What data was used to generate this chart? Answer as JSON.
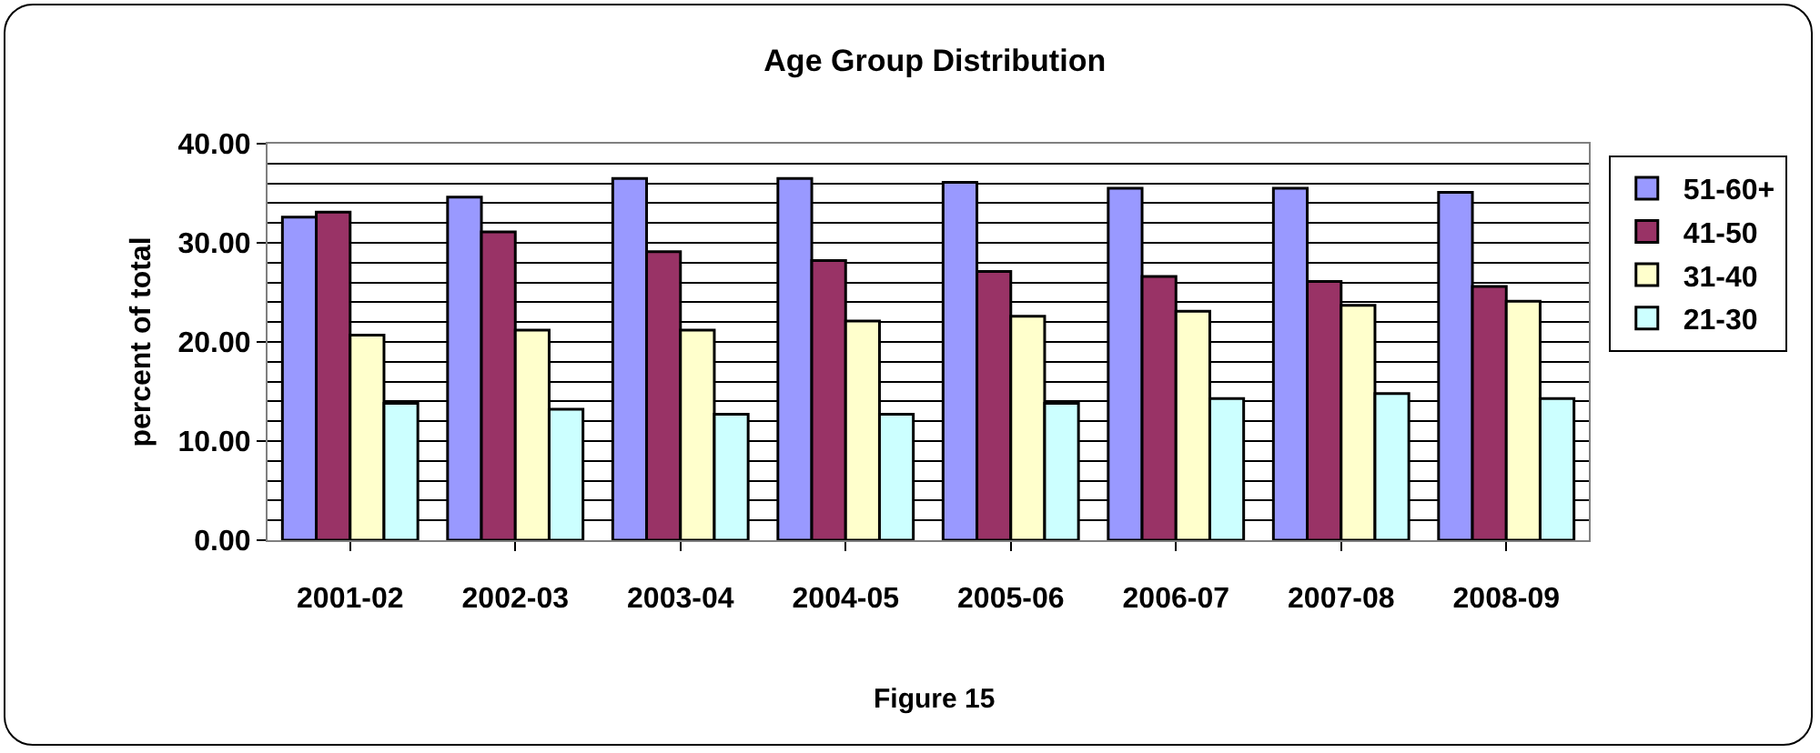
{
  "chart_data": {
    "type": "bar",
    "title": "Age Group Distribution",
    "ylabel": "percent of total",
    "annotations": [
      "Figure 15"
    ],
    "categories": [
      "2001-02",
      "2002-03",
      "2003-04",
      "2004-05",
      "2005-06",
      "2006-07",
      "2007-08",
      "2008-09"
    ],
    "series": [
      {
        "name": "51-60+",
        "color": "#9999ff",
        "values": [
          32.6,
          34.6,
          36.5,
          36.5,
          36.1,
          35.5,
          35.5,
          35.1
        ]
      },
      {
        "name": "41-50",
        "color": "#993366",
        "values": [
          33.1,
          31.1,
          29.1,
          28.2,
          27.1,
          26.6,
          26.1,
          25.6
        ]
      },
      {
        "name": "31-40",
        "color": "#ffffcc",
        "values": [
          20.7,
          21.2,
          21.2,
          22.1,
          22.6,
          23.1,
          23.7,
          24.1
        ]
      },
      {
        "name": "21-30",
        "color": "#ccffff",
        "values": [
          13.8,
          13.2,
          12.7,
          12.7,
          13.8,
          14.3,
          14.8,
          14.3
        ]
      }
    ],
    "ylim": [
      0,
      40
    ],
    "yticks": [
      {
        "value": 0,
        "label": "0.00"
      },
      {
        "value": 10,
        "label": "10.00"
      },
      {
        "value": 20,
        "label": "20.00"
      },
      {
        "value": 30,
        "label": "30.00"
      },
      {
        "value": 40,
        "label": "40.00"
      }
    ],
    "grid": true,
    "legend": "right"
  }
}
